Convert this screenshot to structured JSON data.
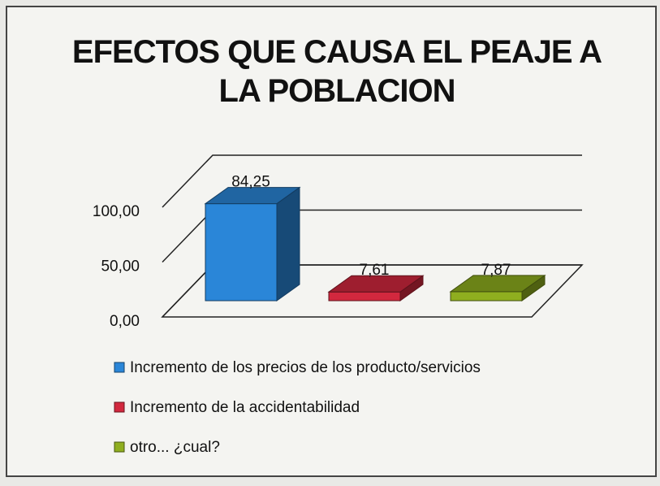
{
  "chart_data": {
    "type": "bar3d",
    "title": "EFECTOS QUE CAUSA EL PEAJE A LA POBLACION",
    "series": [
      {
        "name": "Incremento de los precios de los producto/servicios",
        "color": "#2a86d8",
        "values": [
          84.25
        ],
        "value_labels": [
          "84,25"
        ]
      },
      {
        "name": "Incremento de la accidentabilidad",
        "color": "#d2283e",
        "values": [
          7.61
        ],
        "value_labels": [
          "7,61"
        ]
      },
      {
        "name": "otro... ¿cual?",
        "color": "#8fae1f",
        "values": [
          7.87
        ],
        "value_labels": [
          "7,87"
        ]
      }
    ],
    "ylim": [
      0,
      100
    ],
    "yticks": [
      {
        "value": 0,
        "label": "0,00"
      },
      {
        "value": 50,
        "label": "50,00"
      },
      {
        "value": 100,
        "label": "100,00"
      }
    ],
    "grid": true
  }
}
